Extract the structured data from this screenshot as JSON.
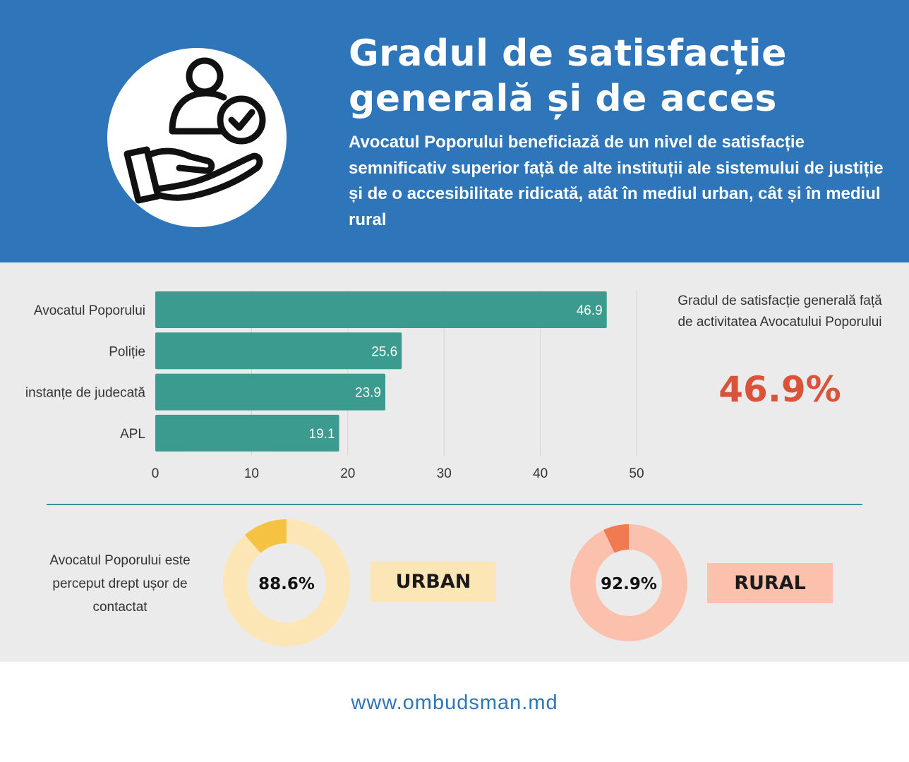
{
  "header": {
    "title_line1": "Gradul de satisfacție",
    "title_line2": "generală și de acces",
    "subtitle": "Avocatul Poporului beneficiază de un nivel de satisfacție semnificativ superior față de alte instituții ale sistemului de justiție și de o accesibilitate ridicată, atât în mediul urban, cât și în mediul rural",
    "icon": "hand-person-check-icon"
  },
  "kpi": {
    "label": "Gradul de satisfacție generală față de activitatea Avocatului Poporului",
    "value": "46.9%"
  },
  "chart_data": [
    {
      "type": "bar",
      "orientation": "horizontal",
      "categories": [
        "Avocatul Poporului",
        "Poliție",
        "instanțe de judecată",
        "APL"
      ],
      "values": [
        46.9,
        25.6,
        23.9,
        19.1
      ],
      "value_labels": [
        "46.9",
        "25.6",
        "23.9",
        "19.1"
      ],
      "xlim": [
        0,
        50
      ],
      "xticks": [
        0,
        10,
        20,
        30,
        40,
        50
      ],
      "grid": true,
      "title": "",
      "xlabel": "",
      "ylabel": "",
      "bar_color": "#3b9b8e"
    },
    {
      "type": "pie",
      "subtype": "donut",
      "name": "URBAN",
      "value": 88.6,
      "label": "88.6%",
      "colors": {
        "main": "#fde6b6",
        "rest": "#f5c242"
      }
    },
    {
      "type": "pie",
      "subtype": "donut",
      "name": "RURAL",
      "value": 92.9,
      "label": "92.9%",
      "colors": {
        "main": "#fcc1ad",
        "rest": "#f07a52"
      }
    }
  ],
  "access": {
    "label": "Avocatul Poporului este perceput drept ușor de contactat",
    "urban_tag": "URBAN",
    "rural_tag": "RURAL"
  },
  "footer": {
    "url": "www.ombudsman.md"
  },
  "colors": {
    "header_bg": "#2e75b9",
    "content_bg": "#ebebeb",
    "bar": "#3b9b8e",
    "accent_red": "#d9533a",
    "divider": "#3a8f9a"
  }
}
